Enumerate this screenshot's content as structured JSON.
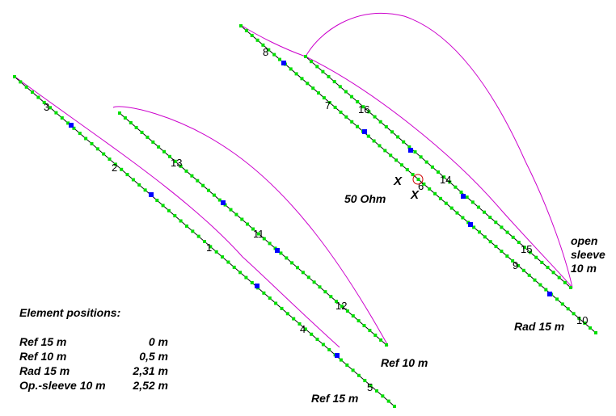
{
  "antenna_labels": {
    "ref15": "Ref 15 m",
    "ref10": "Ref 10 m",
    "rad15": "Rad 15 m",
    "open_sleeve": [
      "open",
      "sleeve",
      "10 m"
    ],
    "feed": "50 Ohm"
  },
  "feed_marks": [
    "X",
    "X"
  ],
  "segment_numbers": [
    "1",
    "2",
    "3",
    "4",
    "5",
    "6",
    "7",
    "8",
    "9",
    "10",
    "11",
    "12",
    "13",
    "14",
    "15",
    "16"
  ],
  "legend": {
    "title": "Element positions:",
    "rows": [
      {
        "name": "Ref 15 m",
        "value": "0 m"
      },
      {
        "name": "Ref 10 m",
        "value": "0,5 m"
      },
      {
        "name": "Rad 15 m",
        "value": "2,31 m"
      },
      {
        "name": "Op.-sleeve 10 m",
        "value": "2,52 m"
      }
    ]
  },
  "colors": {
    "wire": "#000000",
    "segment_dot": "#00dd00",
    "node_marker": "#0000ff",
    "current_curve": "#cc00cc",
    "feed_circle": "#cc0000"
  }
}
